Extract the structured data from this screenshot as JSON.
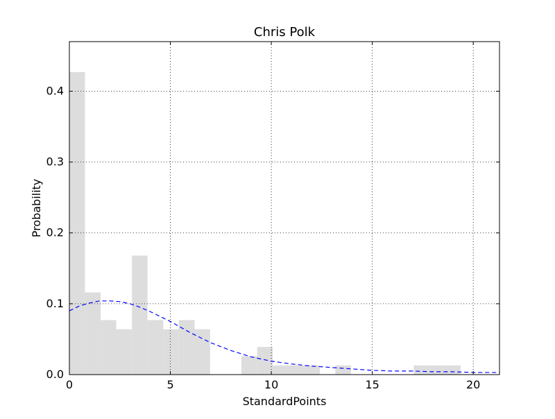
{
  "chart_data": {
    "type": "bar",
    "title": "Chris Polk",
    "xlabel": "StandardPoints",
    "ylabel": "Probability",
    "xlim": [
      0,
      21.3
    ],
    "ylim": [
      0,
      0.47
    ],
    "grid": true,
    "xticks": [
      0,
      5,
      10,
      15,
      20
    ],
    "yticks": [
      0.0,
      0.1,
      0.2,
      0.3,
      0.4
    ],
    "xtick_labels": [
      "0",
      "5",
      "10",
      "15",
      "20"
    ],
    "ytick_labels": [
      "0.0",
      "0.1",
      "0.2",
      "0.3",
      "0.4"
    ],
    "bar_color": "#dddddd",
    "curve_color": "#0000ff",
    "histogram": [
      {
        "x0": 0.0,
        "x1": 0.77,
        "value": 0.427
      },
      {
        "x0": 0.77,
        "x1": 1.55,
        "value": 0.116
      },
      {
        "x0": 1.55,
        "x1": 2.32,
        "value": 0.077
      },
      {
        "x0": 2.32,
        "x1": 3.1,
        "value": 0.064
      },
      {
        "x0": 3.1,
        "x1": 3.87,
        "value": 0.168
      },
      {
        "x0": 3.87,
        "x1": 4.65,
        "value": 0.077
      },
      {
        "x0": 4.65,
        "x1": 5.42,
        "value": 0.064
      },
      {
        "x0": 5.42,
        "x1": 6.2,
        "value": 0.077
      },
      {
        "x0": 6.2,
        "x1": 6.97,
        "value": 0.064
      },
      {
        "x0": 6.97,
        "x1": 7.75,
        "value": 0.0
      },
      {
        "x0": 7.75,
        "x1": 8.52,
        "value": 0.0
      },
      {
        "x0": 8.52,
        "x1": 9.3,
        "value": 0.026
      },
      {
        "x0": 9.3,
        "x1": 10.07,
        "value": 0.039
      },
      {
        "x0": 10.07,
        "x1": 10.85,
        "value": 0.013
      },
      {
        "x0": 10.85,
        "x1": 11.62,
        "value": 0.013
      },
      {
        "x0": 11.62,
        "x1": 12.4,
        "value": 0.013
      },
      {
        "x0": 12.4,
        "x1": 13.17,
        "value": 0.0
      },
      {
        "x0": 13.17,
        "x1": 13.95,
        "value": 0.013
      },
      {
        "x0": 13.95,
        "x1": 14.72,
        "value": 0.0
      },
      {
        "x0": 14.72,
        "x1": 15.5,
        "value": 0.0
      },
      {
        "x0": 15.5,
        "x1": 16.27,
        "value": 0.0
      },
      {
        "x0": 16.27,
        "x1": 17.05,
        "value": 0.0
      },
      {
        "x0": 17.05,
        "x1": 17.82,
        "value": 0.013
      },
      {
        "x0": 17.82,
        "x1": 18.6,
        "value": 0.013
      },
      {
        "x0": 18.6,
        "x1": 19.37,
        "value": 0.013
      }
    ],
    "fit_curve": {
      "style": "dashed",
      "x": [
        0,
        0.5,
        1,
        1.5,
        2,
        2.5,
        3,
        3.5,
        4,
        5,
        6,
        7,
        8,
        9,
        10,
        11,
        12,
        13,
        14,
        15,
        16,
        17,
        18,
        19,
        20,
        21.3
      ],
      "y": [
        0.09,
        0.097,
        0.101,
        0.104,
        0.104,
        0.103,
        0.1,
        0.095,
        0.089,
        0.075,
        0.059,
        0.045,
        0.034,
        0.025,
        0.019,
        0.015,
        0.012,
        0.01,
        0.008,
        0.006,
        0.005,
        0.005,
        0.004,
        0.004,
        0.003,
        0.003
      ]
    }
  }
}
